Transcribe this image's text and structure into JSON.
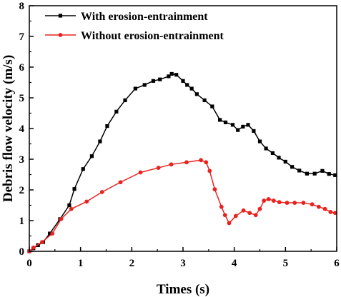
{
  "chart_data": {
    "type": "line",
    "xlabel": "Times (s)",
    "ylabel": "Debris flow velocity (m/s)",
    "xlim": [
      0,
      6
    ],
    "ylim": [
      0,
      8
    ],
    "xticks": [
      0,
      1,
      2,
      3,
      4,
      5,
      6
    ],
    "yticks": [
      0,
      1,
      2,
      3,
      4,
      5,
      6,
      7,
      8
    ],
    "grid": false,
    "legend_position": "top-left",
    "series": [
      {
        "name": "With erosion-entrainment",
        "color": "#000000",
        "marker": "square",
        "points": [
          [
            0.0,
            0.0
          ],
          [
            0.08,
            0.1
          ],
          [
            0.17,
            0.2
          ],
          [
            0.27,
            0.3
          ],
          [
            0.4,
            0.58
          ],
          [
            0.6,
            1.05
          ],
          [
            0.78,
            1.5
          ],
          [
            0.88,
            2.03
          ],
          [
            1.05,
            2.68
          ],
          [
            1.22,
            3.1
          ],
          [
            1.38,
            3.58
          ],
          [
            1.52,
            4.08
          ],
          [
            1.7,
            4.55
          ],
          [
            1.87,
            4.92
          ],
          [
            2.07,
            5.3
          ],
          [
            2.25,
            5.42
          ],
          [
            2.42,
            5.55
          ],
          [
            2.55,
            5.6
          ],
          [
            2.72,
            5.7
          ],
          [
            2.78,
            5.78
          ],
          [
            2.87,
            5.75
          ],
          [
            3.0,
            5.55
          ],
          [
            3.08,
            5.42
          ],
          [
            3.17,
            5.3
          ],
          [
            3.27,
            5.12
          ],
          [
            3.42,
            4.92
          ],
          [
            3.57,
            4.72
          ],
          [
            3.72,
            4.28
          ],
          [
            3.83,
            4.2
          ],
          [
            3.97,
            4.12
          ],
          [
            4.07,
            3.95
          ],
          [
            4.17,
            4.06
          ],
          [
            4.27,
            4.12
          ],
          [
            4.38,
            3.92
          ],
          [
            4.5,
            3.58
          ],
          [
            4.62,
            3.35
          ],
          [
            4.75,
            3.2
          ],
          [
            4.87,
            3.05
          ],
          [
            5.0,
            2.92
          ],
          [
            5.13,
            2.75
          ],
          [
            5.27,
            2.63
          ],
          [
            5.42,
            2.53
          ],
          [
            5.57,
            2.53
          ],
          [
            5.72,
            2.62
          ],
          [
            5.85,
            2.52
          ],
          [
            5.97,
            2.48
          ]
        ]
      },
      {
        "name": "Without erosion-entrainment",
        "color": "#e8231f",
        "marker": "circle",
        "points": [
          [
            0.0,
            0.0
          ],
          [
            0.08,
            0.12
          ],
          [
            0.25,
            0.3
          ],
          [
            0.45,
            0.58
          ],
          [
            0.62,
            1.05
          ],
          [
            0.82,
            1.38
          ],
          [
            1.12,
            1.62
          ],
          [
            1.42,
            1.93
          ],
          [
            1.78,
            2.25
          ],
          [
            2.17,
            2.57
          ],
          [
            2.52,
            2.72
          ],
          [
            2.77,
            2.83
          ],
          [
            3.07,
            2.9
          ],
          [
            3.35,
            2.97
          ],
          [
            3.45,
            2.9
          ],
          [
            3.52,
            2.62
          ],
          [
            3.62,
            2.02
          ],
          [
            3.75,
            1.45
          ],
          [
            3.82,
            1.18
          ],
          [
            3.9,
            0.92
          ],
          [
            4.03,
            1.15
          ],
          [
            4.18,
            1.33
          ],
          [
            4.3,
            1.25
          ],
          [
            4.42,
            1.18
          ],
          [
            4.5,
            1.38
          ],
          [
            4.58,
            1.65
          ],
          [
            4.67,
            1.7
          ],
          [
            4.77,
            1.65
          ],
          [
            4.88,
            1.6
          ],
          [
            5.03,
            1.58
          ],
          [
            5.18,
            1.58
          ],
          [
            5.35,
            1.58
          ],
          [
            5.52,
            1.53
          ],
          [
            5.65,
            1.45
          ],
          [
            5.77,
            1.38
          ],
          [
            5.88,
            1.28
          ],
          [
            5.97,
            1.25
          ]
        ]
      }
    ]
  }
}
